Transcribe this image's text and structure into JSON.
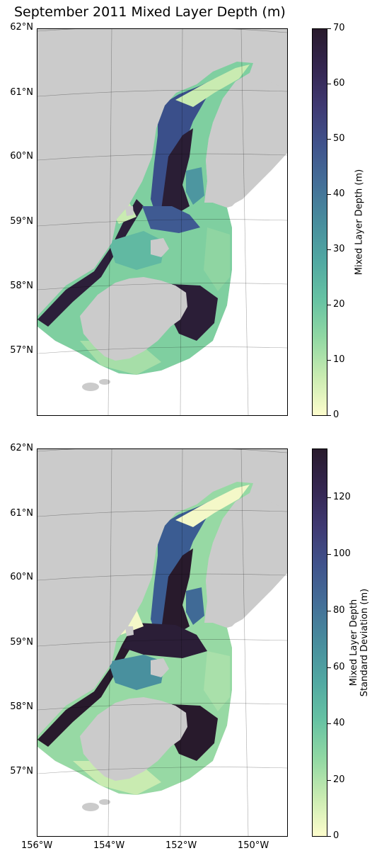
{
  "title": "September 2011 Mixed Layer Depth (m)",
  "colors": {
    "land": "#cbcbcb",
    "ocean_background": "#ffffff",
    "frame": "#000000",
    "colormap": "deep (cream-yellow → green → blue → dark purple)",
    "cmap_stops": [
      "#fdfdcc",
      "#c9ebb1",
      "#91d8a3",
      "#66c2a3",
      "#51a8a2",
      "#488d9d",
      "#446f98",
      "#40538c",
      "#3f3972",
      "#342650",
      "#281a2c"
    ]
  },
  "map": {
    "lat_ticks": [
      "62°N",
      "61°N",
      "60°N",
      "59°N",
      "58°N",
      "57°N"
    ],
    "lon_ticks": [
      "156°W",
      "154°W",
      "152°W",
      "150°W"
    ],
    "extent": {
      "lon_min": -156,
      "lon_max": -149,
      "lat_min": 56,
      "lat_max": 62
    }
  },
  "panels": [
    {
      "name": "mean",
      "colorbar": {
        "label": "Mixed Layer Depth (m)",
        "range": [
          0,
          70
        ],
        "ticks": [
          "70",
          "60",
          "50",
          "40",
          "30",
          "20",
          "10",
          "0"
        ]
      }
    },
    {
      "name": "std",
      "colorbar": {
        "label_line1": "Mixed Layer Depth",
        "label_line2": "Standard Deviation (m)",
        "range": [
          0,
          137
        ],
        "ticks": [
          "120",
          "100",
          "80",
          "60",
          "40",
          "20",
          "0"
        ]
      }
    }
  ]
}
